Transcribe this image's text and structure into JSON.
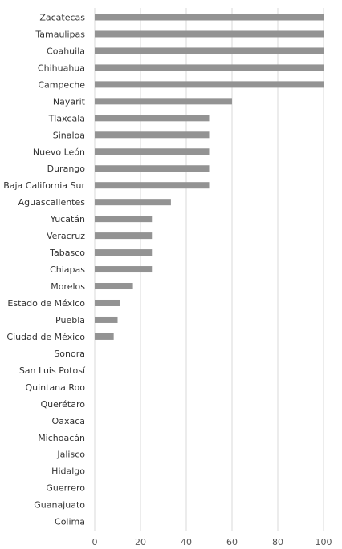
{
  "chart_data": {
    "type": "bar",
    "orientation": "horizontal",
    "categories": [
      "Zacatecas",
      "Tamaulipas",
      "Coahuila",
      "Chihuahua",
      "Campeche",
      "Nayarit",
      "Tlaxcala",
      "Sinaloa",
      "Nuevo León",
      "Durango",
      "Baja California Sur",
      "Aguascalientes",
      "Yucatán",
      "Veracruz",
      "Tabasco",
      "Chiapas",
      "Morelos",
      "Estado de México",
      "Puebla",
      "Ciudad de México",
      "Sonora",
      "San Luis Potosí",
      "Quintana Roo",
      "Querétaro",
      "Oaxaca",
      "Michoacán",
      "Jalisco",
      "Hidalgo",
      "Guerrero",
      "Guanajuato",
      "Colima"
    ],
    "values": [
      100,
      100,
      100,
      100,
      100,
      60,
      50,
      50,
      50,
      50,
      50,
      33.3,
      25,
      25,
      25,
      25,
      16.7,
      11.1,
      10,
      8.3,
      0,
      0,
      0,
      0,
      0,
      0,
      0,
      0,
      0,
      0,
      0
    ],
    "xlim": [
      0,
      100
    ],
    "xticks": [
      "0",
      "20",
      "40",
      "60",
      "80",
      "100"
    ],
    "grid": true,
    "bar_color": "#939393",
    "grid_color": "#d9d9d9"
  }
}
